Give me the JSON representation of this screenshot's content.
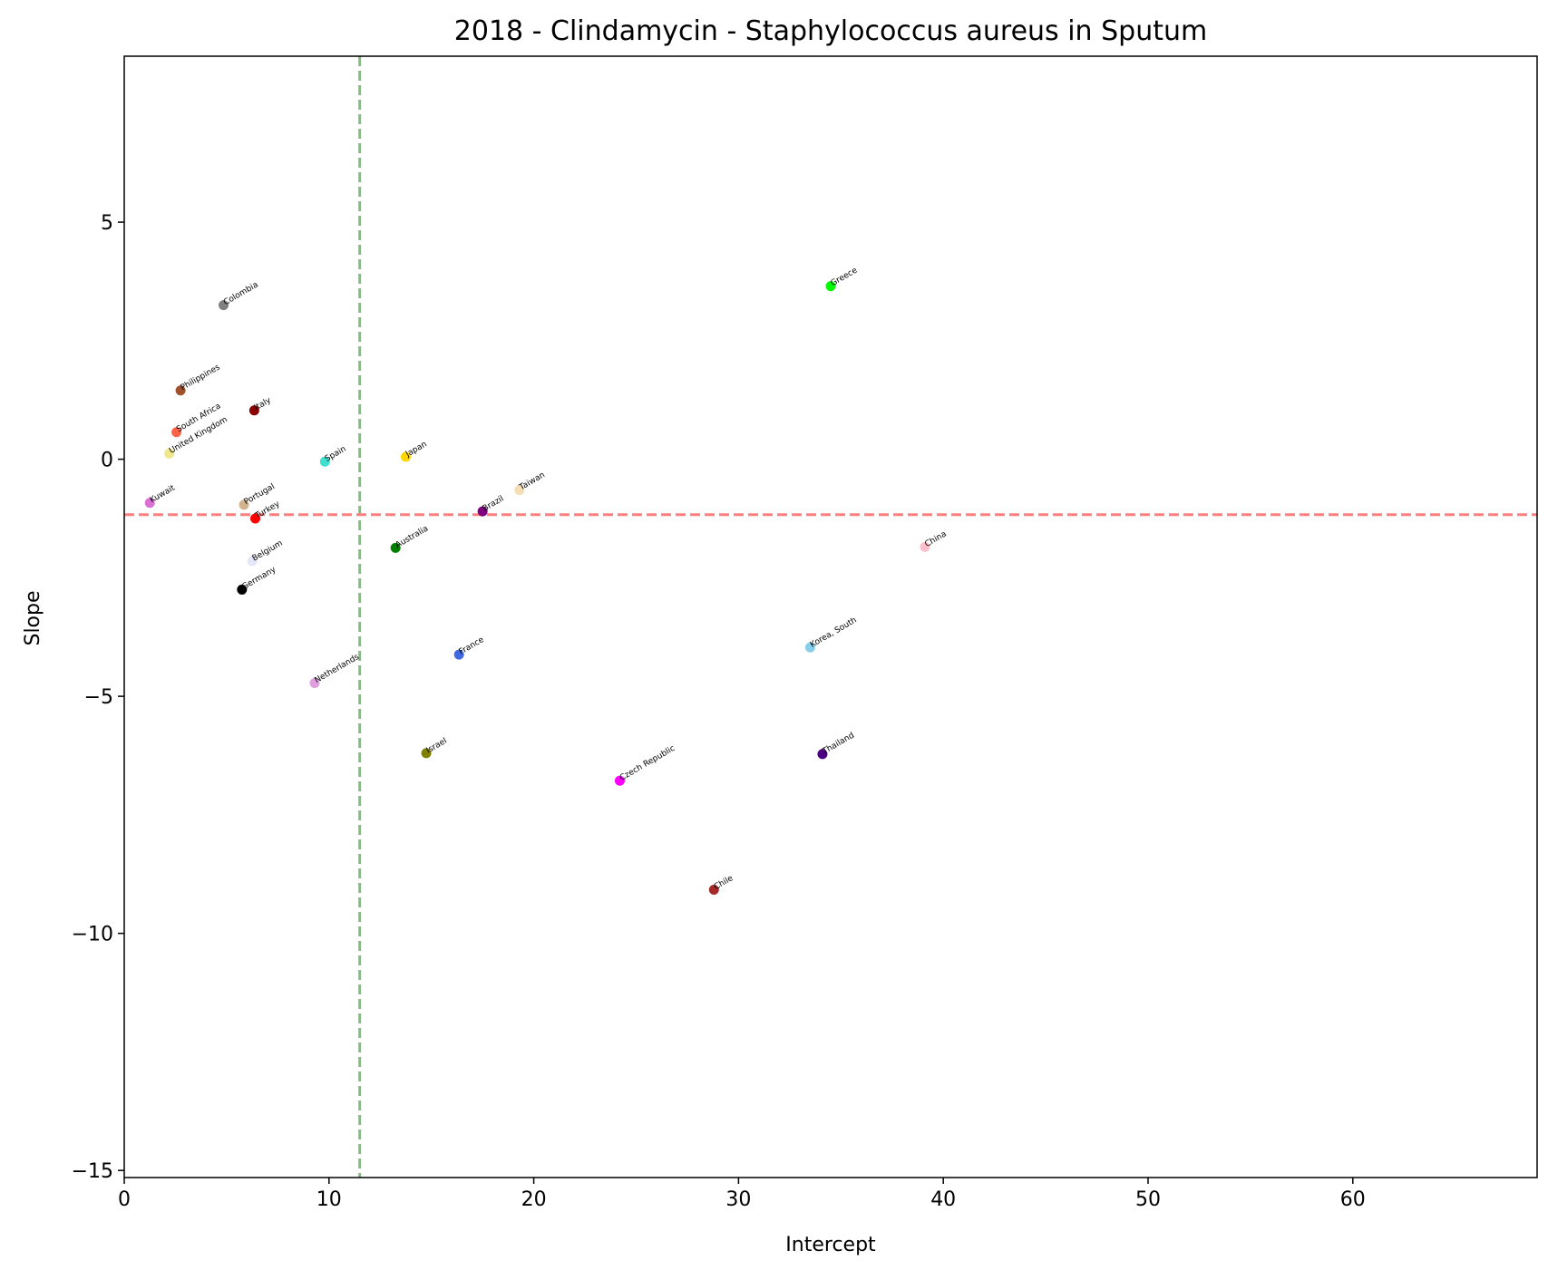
{
  "chart_data": {
    "type": "scatter",
    "title": "2018 - Clindamycin - Staphylococcus aureus in Sputum",
    "xlabel": "Intercept",
    "ylabel": "Slope",
    "xlim": [
      0,
      69
    ],
    "ylim": [
      -15.15,
      8.5
    ],
    "xticks": [
      0,
      10,
      20,
      30,
      40,
      50,
      60
    ],
    "yticks": [
      5,
      0,
      -5,
      -10,
      -15
    ],
    "xtick_labels": [
      "0",
      "10",
      "20",
      "30",
      "40",
      "50",
      "60"
    ],
    "ytick_labels": [
      "5",
      "0",
      "−5",
      "−10",
      "−15"
    ],
    "grid": false,
    "reference_lines": [
      {
        "orientation": "vertical",
        "value": 11.5,
        "color": "#7fbf7f",
        "style": "dashed"
      },
      {
        "orientation": "horizontal",
        "value": -1.17,
        "color": "#ff7f7f",
        "style": "dashed"
      }
    ],
    "points": [
      {
        "label": "Colombia",
        "x": 4.85,
        "y": 3.25,
        "color": "#808080"
      },
      {
        "label": "Greece",
        "x": 34.5,
        "y": 3.65,
        "color": "#00ff00"
      },
      {
        "label": "Philippines",
        "x": 2.75,
        "y": 1.45,
        "color": "#a0522d"
      },
      {
        "label": "Italy",
        "x": 6.35,
        "y": 1.03,
        "color": "#8b0000"
      },
      {
        "label": "South Africa",
        "x": 2.55,
        "y": 0.57,
        "color": "#ff6347"
      },
      {
        "label": "United Kingdom",
        "x": 2.2,
        "y": 0.12,
        "color": "#f0e68c"
      },
      {
        "label": "Spain",
        "x": 9.8,
        "y": -0.05,
        "color": "#40e0d0"
      },
      {
        "label": "Japan",
        "x": 13.75,
        "y": 0.05,
        "color": "#ffd700"
      },
      {
        "label": "Taiwan",
        "x": 19.3,
        "y": -0.65,
        "color": "#f5deb3"
      },
      {
        "label": "Kuwait",
        "x": 1.25,
        "y": -0.92,
        "color": "#da70d6"
      },
      {
        "label": "Portugal",
        "x": 5.85,
        "y": -0.96,
        "color": "#d2b48c"
      },
      {
        "label": "Brazil",
        "x": 17.5,
        "y": -1.1,
        "color": "#800080"
      },
      {
        "label": "Turkey",
        "x": 6.4,
        "y": -1.25,
        "color": "#ff0000"
      },
      {
        "label": "Australia",
        "x": 13.25,
        "y": -1.87,
        "color": "#008000"
      },
      {
        "label": "China",
        "x": 39.1,
        "y": -1.85,
        "color": "#ffc0cb"
      },
      {
        "label": "Belgium",
        "x": 6.25,
        "y": -2.15,
        "color": "#e6e6fa"
      },
      {
        "label": "Germany",
        "x": 5.75,
        "y": -2.75,
        "color": "#000000"
      },
      {
        "label": "Korea, South",
        "x": 33.5,
        "y": -3.97,
        "color": "#87ceeb"
      },
      {
        "label": "France",
        "x": 16.35,
        "y": -4.12,
        "color": "#4169e1"
      },
      {
        "label": "Netherlands",
        "x": 9.3,
        "y": -4.72,
        "color": "#dda0dd"
      },
      {
        "label": "Israel",
        "x": 14.75,
        "y": -6.2,
        "color": "#808000"
      },
      {
        "label": "Thailand",
        "x": 34.1,
        "y": -6.22,
        "color": "#4b0082"
      },
      {
        "label": "Czech Republic",
        "x": 24.2,
        "y": -6.78,
        "color": "#ff00ff"
      },
      {
        "label": "Chile",
        "x": 28.8,
        "y": -9.08,
        "color": "#a52a2a"
      }
    ]
  }
}
